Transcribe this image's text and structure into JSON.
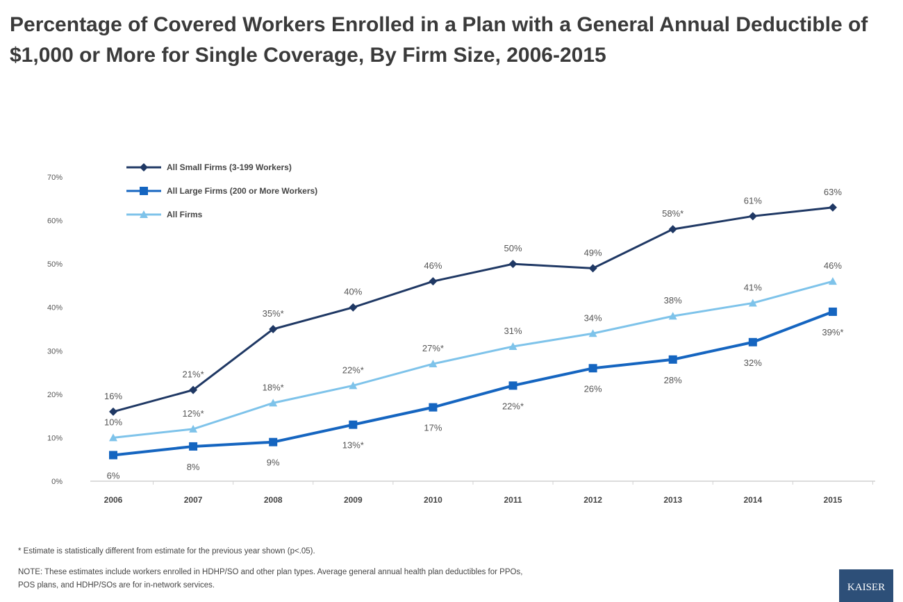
{
  "chart_data": {
    "type": "line",
    "title": "Percentage of Covered Workers Enrolled in a Plan with a General Annual Deductible of $1,000 or More for Single Coverage, By Firm Size, 2006-2015",
    "xlabel": "",
    "ylabel": "",
    "categories": [
      "2006",
      "2007",
      "2008",
      "2009",
      "2010",
      "2011",
      "2012",
      "2013",
      "2014",
      "2015"
    ],
    "ylim": [
      0,
      70
    ],
    "yticks": [
      "0%",
      "10%",
      "20%",
      "30%",
      "40%",
      "50%",
      "60%",
      "70%"
    ],
    "grid": false,
    "legend": "top-left",
    "series": [
      {
        "name": "All Small Firms (3-199 Workers)",
        "color": "#1f3864",
        "marker": "diamond",
        "label_pos": "above",
        "values": [
          16,
          21,
          35,
          40,
          46,
          50,
          49,
          58,
          61,
          63
        ],
        "labels": [
          "16%",
          "21%*",
          "35%*",
          "40%",
          "46%",
          "50%",
          "49%",
          "58%*",
          "61%",
          "63%"
        ]
      },
      {
        "name": "All Large Firms (200 or More Workers)",
        "color": "#1565c0",
        "marker": "square",
        "label_pos": "below",
        "values": [
          6,
          8,
          9,
          13,
          17,
          22,
          26,
          28,
          32,
          39
        ],
        "labels": [
          "6%",
          "8%",
          "9%",
          "13%*",
          "17%",
          "22%*",
          "26%",
          "28%",
          "32%",
          "39%*"
        ]
      },
      {
        "name": "All Firms",
        "color": "#7ec3ea",
        "marker": "triangle",
        "label_pos": "above",
        "values": [
          10,
          12,
          18,
          22,
          27,
          31,
          34,
          38,
          41,
          46
        ],
        "labels": [
          "10%",
          "12%*",
          "18%*",
          "22%*",
          "27%*",
          "31%",
          "34%",
          "38%",
          "41%",
          "46%"
        ]
      }
    ]
  },
  "footnotes": {
    "asterisk": "* Estimate is statistically different from estimate for the previous year shown (p<.05).",
    "note_line1": "NOTE: These estimates include workers enrolled in HDHP/SO and other plan types. Average general annual health plan deductibles for PPOs,",
    "note_line2": "POS plans, and HDHP/SOs are for in-network services."
  },
  "logo": {
    "text": "KAISER"
  }
}
